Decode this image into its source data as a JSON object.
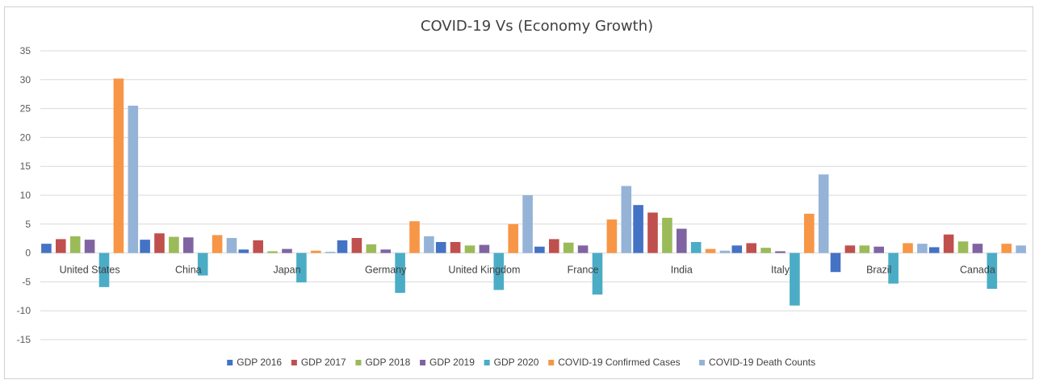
{
  "chart_data": {
    "type": "bar",
    "title": "COVID-19 Vs (Economy Growth)",
    "xlabel": "",
    "ylabel": "",
    "ylim": [
      -15,
      35
    ],
    "yticks": [
      35,
      30,
      25,
      20,
      15,
      10,
      5,
      0,
      -5,
      -10,
      -15
    ],
    "grid": true,
    "legend_position": "bottom",
    "categories": [
      "United States",
      "China",
      "Japan",
      "Germany",
      "United Kingdom",
      "France",
      "India",
      "Italy",
      "Brazil",
      "Canada"
    ],
    "series": [
      {
        "name": "GDP 2016",
        "color": "#4472c4",
        "values": [
          1.6,
          2.3,
          0.6,
          2.2,
          1.9,
          1.1,
          8.3,
          1.3,
          -3.3,
          1.0
        ]
      },
      {
        "name": "GDP 2017",
        "color": "#c0504d",
        "values": [
          2.4,
          3.4,
          2.2,
          2.6,
          1.9,
          2.4,
          7.0,
          1.7,
          1.3,
          3.2
        ]
      },
      {
        "name": "GDP 2018",
        "color": "#9bbb59",
        "values": [
          2.9,
          2.8,
          0.3,
          1.5,
          1.3,
          1.8,
          6.1,
          0.9,
          1.3,
          2.0
        ]
      },
      {
        "name": "GDP 2019",
        "color": "#8064a2",
        "values": [
          2.3,
          2.7,
          0.7,
          0.6,
          1.4,
          1.3,
          4.2,
          0.3,
          1.1,
          1.6
        ]
      },
      {
        "name": "GDP 2020",
        "color": "#4bacc6",
        "values": [
          -5.9,
          -3.9,
          -5.1,
          -6.9,
          -6.4,
          -7.2,
          1.9,
          -9.1,
          -5.3,
          -6.2
        ]
      },
      {
        "name": "COVID-19 Confirmed Cases",
        "color": "#f79646",
        "values": [
          30.2,
          3.1,
          0.4,
          5.5,
          5.0,
          5.8,
          0.7,
          6.8,
          1.7,
          1.6
        ]
      },
      {
        "name": "COVID-19 Death Counts",
        "color": "#95b3d7",
        "values": [
          25.5,
          2.6,
          0.2,
          2.9,
          10.0,
          11.6,
          0.4,
          13.6,
          1.6,
          1.3
        ]
      }
    ]
  }
}
